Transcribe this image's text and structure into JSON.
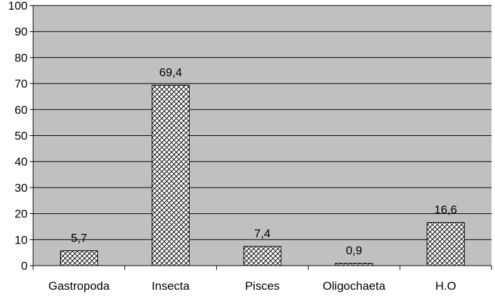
{
  "chart_data": {
    "type": "bar",
    "title": "",
    "xlabel": "",
    "ylabel": "",
    "categories": [
      "Gastropoda",
      "Insecta",
      "Pisces",
      "Oligochaeta",
      "H.O"
    ],
    "values": [
      5.7,
      69.4,
      7.4,
      0.9,
      16.6
    ],
    "value_labels": [
      "5,7",
      "69,4",
      "7,4",
      "0,9",
      "16,6"
    ],
    "ylim": [
      0,
      100
    ],
    "y_ticks": [
      0,
      10,
      20,
      30,
      40,
      50,
      60,
      70,
      80,
      90,
      100
    ],
    "grid": true,
    "legend": "none",
    "bar_fill": "crosshatch",
    "colors": {
      "plot_background": "#c0c0c0",
      "gridline": "#000000",
      "bar_fill": "#ffffff",
      "bar_hatch": "#000000",
      "bar_border": "#000000"
    }
  }
}
